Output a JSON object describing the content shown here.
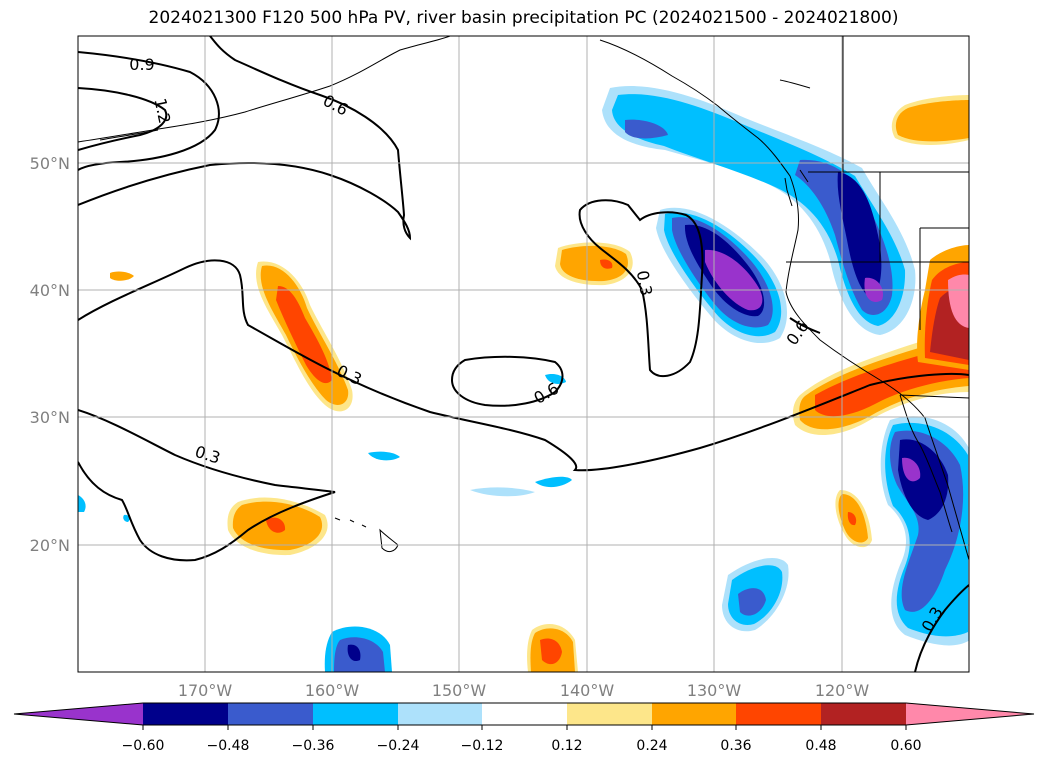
{
  "title": "2024021300 F120 500 hPa PV, river basin precipitation PC (2024021500 - 2024021800)",
  "map": {
    "lat_labels": [
      "50°N",
      "40°N",
      "30°N",
      "20°N"
    ],
    "lon_labels": [
      "170°W",
      "160°W",
      "150°W",
      "140°W",
      "130°W",
      "120°W"
    ],
    "contour_labels": [
      "0.9",
      "1.2",
      "0.6",
      "0.3",
      "0.3",
      "0.6",
      "0.6",
      "0.3",
      "0.3"
    ]
  },
  "colorbar": {
    "ticks": [
      "−0.60",
      "−0.48",
      "−0.36",
      "−0.24",
      "−0.12",
      "0.12",
      "0.24",
      "0.36",
      "0.48",
      "0.60"
    ],
    "colors": [
      "#9933cc",
      "#00008b",
      "#3a5bcd",
      "#00bfff",
      "#ade1fb",
      "#ffffff",
      "#fde68a",
      "#ffa500",
      "#ff4500",
      "#b22222",
      "#ff88aa"
    ]
  },
  "colors": {
    "neg_extreme": "#9933cc",
    "neg_strong": "#00008b",
    "neg_mid": "#3a5bcd",
    "neg_weak": "#00bfff",
    "neg_light": "#ade1fb",
    "pos_light": "#fde68a",
    "pos_weak": "#ffa500",
    "pos_mid": "#ff4500",
    "pos_strong": "#b22222",
    "pos_extreme": "#ff88aa"
  }
}
